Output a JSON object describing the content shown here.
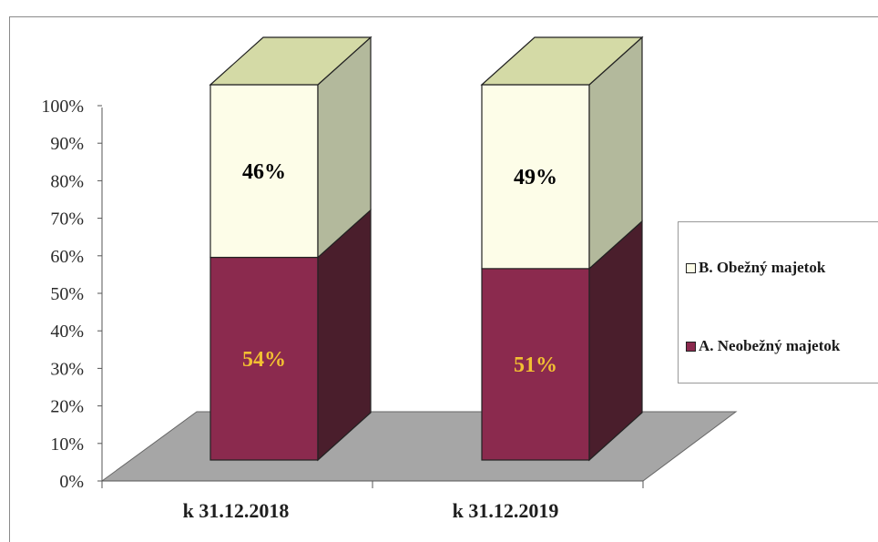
{
  "chart_data": {
    "type": "bar",
    "stacked": true,
    "categories": [
      "k 31.12.2018",
      "k 31.12.2019"
    ],
    "series": [
      {
        "name": "A. Neobežný majetok",
        "values": [
          54,
          51
        ],
        "labels": [
          "54%",
          "51%"
        ],
        "color": "#8b2a4e",
        "label_color": "#f2c032"
      },
      {
        "name": "B. Obežný majetok",
        "values": [
          46,
          49
        ],
        "labels": [
          "46%",
          "49%"
        ],
        "color": "#fdfde8",
        "label_color": "#000000"
      }
    ],
    "y_ticks": [
      "0%",
      "10%",
      "20%",
      "30%",
      "40%",
      "50%",
      "60%",
      "70%",
      "80%",
      "90%",
      "100%"
    ],
    "ylim": [
      0,
      100
    ],
    "legend_position": "right",
    "style": "3d-stacked-column"
  }
}
